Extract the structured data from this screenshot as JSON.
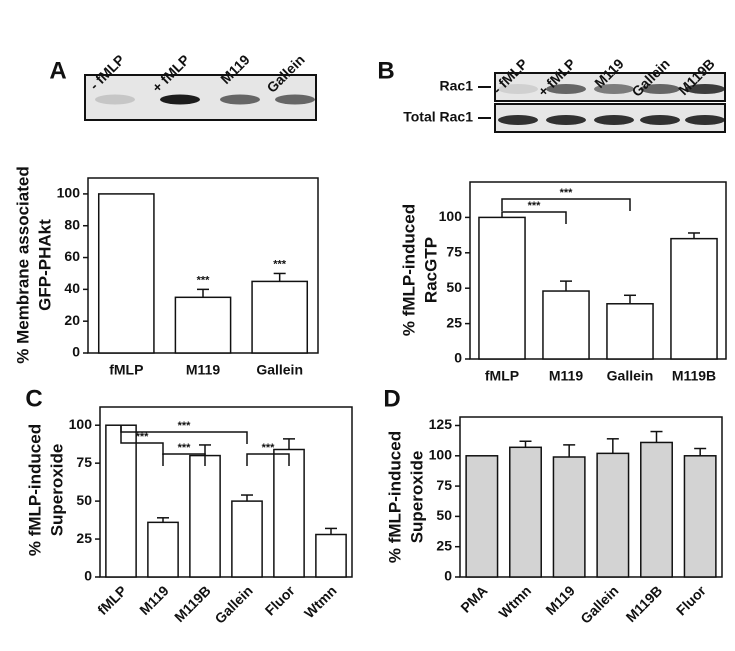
{
  "chart_data": [
    {
      "type": "bar",
      "panel": "A",
      "ylabel": [
        "% Membrane associated",
        "GFP-PHAkt"
      ],
      "categories": [
        "fMLP",
        "M119",
        "Gallein"
      ],
      "values": [
        100,
        35,
        45
      ],
      "errors": [
        0,
        5,
        5
      ],
      "color": "#ffffff",
      "ylim": [
        0,
        110
      ],
      "yticks": [
        0,
        20,
        40,
        60,
        80,
        100
      ],
      "significance": [
        {
          "text": "***",
          "at": "M119"
        },
        {
          "text": "***",
          "at": "Gallein"
        }
      ],
      "blot": {
        "lanes": [
          "- fMLP",
          "+ fMLP",
          "M119",
          "Gallein"
        ],
        "rows": []
      }
    },
    {
      "type": "bar",
      "panel": "B",
      "ylabel": [
        "% fMLP-induced",
        "RacGTP"
      ],
      "categories": [
        "fMLP",
        "M119",
        "Gallein",
        "M119B"
      ],
      "values": [
        100,
        48,
        39,
        85
      ],
      "errors": [
        0,
        7,
        6,
        4
      ],
      "color": "#ffffff",
      "ylim": [
        0,
        125
      ],
      "yticks": [
        0,
        25,
        50,
        75,
        100
      ],
      "significance": [
        {
          "text": "***",
          "from": "fMLP",
          "to": "M119"
        },
        {
          "text": "***",
          "from": "fMLP",
          "to": "Gallein"
        }
      ],
      "blot": {
        "lanes": [
          "- fMLP",
          "+ fMLP",
          "M119",
          "Gallein",
          "M119B"
        ],
        "rows": [
          "Rac1",
          "Total Rac1"
        ]
      }
    },
    {
      "type": "bar",
      "panel": "C",
      "ylabel": [
        "% fMLP-induced",
        "Superoxide"
      ],
      "categories": [
        "fMLP",
        "M119",
        "M119B",
        "Gallein",
        "Fluor",
        "Wtmn"
      ],
      "values": [
        100,
        36,
        80,
        50,
        84,
        28
      ],
      "errors": [
        0,
        3,
        7,
        4,
        7,
        4
      ],
      "color": "#ffffff",
      "ylim": [
        0,
        112
      ],
      "yticks": [
        0,
        25,
        50,
        75,
        100
      ],
      "significance": [
        {
          "text": "***",
          "from": "fMLP",
          "to": "M119"
        },
        {
          "text": "***",
          "from": "M119",
          "to": "M119B"
        },
        {
          "text": "***",
          "from": "fMLP",
          "to": "Gallein"
        },
        {
          "text": "***",
          "from": "Gallein",
          "to": "Fluor"
        }
      ]
    },
    {
      "type": "bar",
      "panel": "D",
      "ylabel": [
        "% fMLP-induced",
        "Superoxide"
      ],
      "categories": [
        "PMA",
        "Wtmn",
        "M119",
        "Gallein",
        "M119B",
        "Fluor"
      ],
      "values": [
        100,
        107,
        99,
        102,
        111,
        100
      ],
      "errors": [
        0,
        5,
        10,
        12,
        9,
        6
      ],
      "color": "#d3d3d3",
      "ylim": [
        0,
        132
      ],
      "yticks": [
        0,
        25,
        50,
        75,
        100,
        125
      ],
      "significance": []
    }
  ]
}
